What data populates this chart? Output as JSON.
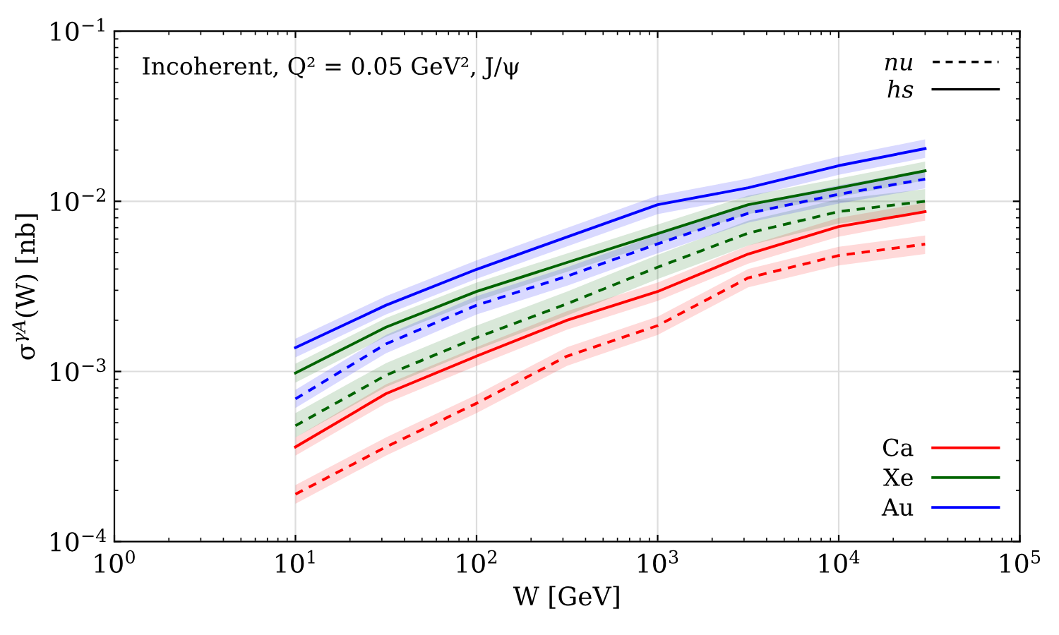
{
  "chart_data": {
    "type": "line",
    "title": "Incoherent, Q² = 0.05 GeV², J/ψ",
    "xlabel": "W [GeV]",
    "ylabel": "σ$^{γA}$(W) [nb]",
    "log": "xy",
    "grid": true,
    "legend": "bottom right",
    "annotations": [
      "nu",
      "hs"
    ],
    "xlim": [
      1,
      100000
    ],
    "ylim": [
      0.0001,
      0.1
    ],
    "xticks": [
      {
        "value": 1,
        "label": "10$^{0}$"
      },
      {
        "value": 10,
        "label": "10$^{1}$"
      },
      {
        "value": 100,
        "label": "10$^{2}$"
      },
      {
        "value": 1000,
        "label": "10$^{3}$"
      },
      {
        "value": 10000,
        "label": "10$^{4}$"
      },
      {
        "value": 100000,
        "label": "10$^{5}$"
      }
    ],
    "yticks": [
      {
        "value": 0.0001,
        "label": "10$^{−4}$"
      },
      {
        "value": 0.001,
        "label": "10$^{−3}$"
      },
      {
        "value": 0.01,
        "label": "10$^{−2}$"
      },
      {
        "value": 0.1,
        "label": "10$^{−1}$"
      }
    ],
    "x": [
      10,
      31.6,
      100,
      316,
      1000,
      3162,
      10000,
      30000
    ],
    "series": [
      {
        "color": "#ff0000",
        "line_style": "dashed",
        "values": [
          0.00019,
          0.00036,
          0.00065,
          0.00123,
          0.00186,
          0.00355,
          0.0048,
          0.0056
        ],
        "lower": [
          0.000167,
          0.00032,
          0.00057,
          0.00108,
          0.00164,
          0.00312,
          0.0042,
          0.0049
        ],
        "upper": [
          0.000215,
          0.00041,
          0.00073,
          0.00139,
          0.0021,
          0.004,
          0.0054,
          0.0063
        ]
      },
      {
        "name": "Ca",
        "color": "#ff0000",
        "line_style": "solid",
        "values": [
          0.00036,
          0.00074,
          0.00123,
          0.002,
          0.00295,
          0.0049,
          0.0071,
          0.0087
        ],
        "lower": [
          0.00032,
          0.00065,
          0.00108,
          0.00176,
          0.0026,
          0.0043,
          0.0062,
          0.0077
        ],
        "upper": [
          0.00041,
          0.00084,
          0.00139,
          0.00226,
          0.00333,
          0.0055,
          0.008,
          0.0098
        ]
      },
      {
        "color": "#006400",
        "line_style": "dashed",
        "values": [
          0.00048,
          0.00095,
          0.00158,
          0.0025,
          0.0041,
          0.0065,
          0.0087,
          0.01
        ],
        "lower": [
          0.00041,
          0.00081,
          0.00134,
          0.00213,
          0.00349,
          0.0055,
          0.0074,
          0.0085
        ],
        "upper": [
          0.00057,
          0.00112,
          0.00186,
          0.00295,
          0.00484,
          0.0077,
          0.0103,
          0.0118
        ]
      },
      {
        "name": "Xe",
        "color": "#006400",
        "line_style": "solid",
        "values": [
          0.00098,
          0.00182,
          0.00295,
          0.00437,
          0.00646,
          0.00955,
          0.012,
          0.0151
        ],
        "lower": [
          0.00086,
          0.0016,
          0.0026,
          0.00385,
          0.00568,
          0.0084,
          0.0106,
          0.0133
        ],
        "upper": [
          0.00111,
          0.00206,
          0.00333,
          0.00494,
          0.0073,
          0.0108,
          0.0136,
          0.0171
        ]
      },
      {
        "color": "#0000ff",
        "line_style": "dashed",
        "values": [
          0.00069,
          0.00145,
          0.00245,
          0.00363,
          0.00562,
          0.0085,
          0.011,
          0.0135
        ],
        "lower": [
          0.00061,
          0.00128,
          0.00216,
          0.00319,
          0.00495,
          0.0075,
          0.0097,
          0.0119
        ],
        "upper": [
          0.00078,
          0.00164,
          0.00277,
          0.0041,
          0.00635,
          0.0096,
          0.0124,
          0.0153
        ]
      },
      {
        "name": "Au",
        "color": "#0000ff",
        "line_style": "solid",
        "values": [
          0.00138,
          0.00245,
          0.00398,
          0.00617,
          0.00955,
          0.012,
          0.0162,
          0.0204
        ],
        "lower": [
          0.00121,
          0.00216,
          0.0035,
          0.00543,
          0.0084,
          0.0106,
          0.0143,
          0.018
        ],
        "upper": [
          0.00156,
          0.00277,
          0.0045,
          0.00697,
          0.0108,
          0.0136,
          0.0183,
          0.0231
        ]
      }
    ]
  }
}
